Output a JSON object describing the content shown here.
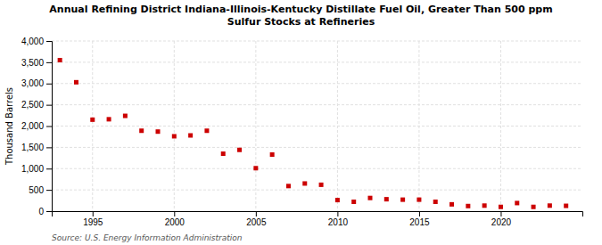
{
  "chart_data": {
    "type": "scatter",
    "title": "Annual Refining District Indiana-Illinois-Kentucky Distillate Fuel Oil, Greater Than 500 ppm\nSulfur Stocks at Refineries",
    "ylabel": "Thousand Barrels",
    "source": "Source: U.S. Energy Information Administration",
    "x": [
      1993,
      1994,
      1995,
      1996,
      1997,
      1998,
      1999,
      2000,
      2001,
      2002,
      2003,
      2004,
      2005,
      2006,
      2007,
      2008,
      2009,
      2010,
      2011,
      2012,
      2013,
      2014,
      2015,
      2016,
      2017,
      2018,
      2019,
      2020,
      2021,
      2022,
      2023,
      2024
    ],
    "values": [
      3550,
      3030,
      2150,
      2160,
      2240,
      1890,
      1870,
      1760,
      1780,
      1890,
      1350,
      1440,
      1010,
      1330,
      590,
      650,
      620,
      260,
      220,
      310,
      280,
      270,
      270,
      220,
      160,
      120,
      130,
      100,
      190,
      100,
      130,
      125
    ],
    "color": "#cc0000",
    "marker": "square",
    "xlim": [
      1992.5,
      2025
    ],
    "xticks": [
      1995,
      2000,
      2005,
      2010,
      2015,
      2020
    ],
    "ylim": [
      0,
      4000
    ],
    "yticks": [
      0,
      500,
      {
        "value": 1000,
        "label": "1,000"
      },
      {
        "value": 1500,
        "label": "1,500"
      },
      {
        "value": 2000,
        "label": "2,000"
      },
      {
        "value": 2500,
        "label": "2,500"
      },
      {
        "value": 3000,
        "label": "3,000"
      },
      {
        "value": 3500,
        "label": "3,500"
      },
      {
        "value": 4000,
        "label": "4,000"
      }
    ],
    "grid": true
  }
}
